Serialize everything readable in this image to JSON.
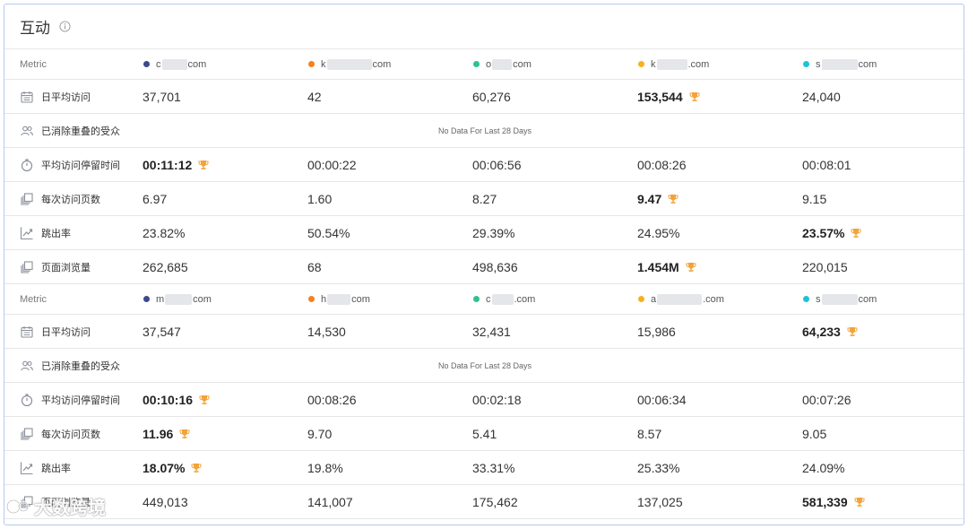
{
  "card": {
    "title": "互动"
  },
  "groups": [
    {
      "header": {
        "metric_label": "Metric",
        "sites": [
          {
            "pre": "c",
            "post": "com",
            "color": "#3b4a8c"
          },
          {
            "pre": "k",
            "post": "com",
            "color": "#f5821f"
          },
          {
            "pre": "o",
            "post": "com",
            "color": "#2fc28f"
          },
          {
            "pre": "k",
            "post": ".com",
            "color": "#f5b21f"
          },
          {
            "pre": "s",
            "post": "com",
            "color": "#1fc2d9"
          }
        ]
      },
      "rows": [
        {
          "icon": "calendar-icon",
          "label": "日平均访问",
          "values": [
            "37,701",
            "42",
            "60,276",
            "153,544",
            "24,040"
          ],
          "best": 3
        },
        {
          "icon": "people-icon",
          "label": "已消除重叠的受众",
          "nodata": "No Data For Last 28 Days"
        },
        {
          "icon": "stopwatch-icon",
          "label": "平均访问停留时间",
          "values": [
            "00:11:12",
            "00:00:22",
            "00:06:56",
            "00:08:26",
            "00:08:01"
          ],
          "best": 0
        },
        {
          "icon": "pages-icon",
          "label": "每次访问页数",
          "values": [
            "6.97",
            "1.60",
            "8.27",
            "9.47",
            "9.15"
          ],
          "best": 3
        },
        {
          "icon": "trend-icon",
          "label": "跳出率",
          "values": [
            "23.82%",
            "50.54%",
            "29.39%",
            "24.95%",
            "23.57%"
          ],
          "best": 4
        },
        {
          "icon": "pages-icon",
          "label": "页面浏览量",
          "values": [
            "262,685",
            "68",
            "498,636",
            "1.454M",
            "220,015"
          ],
          "best": 3
        }
      ]
    },
    {
      "header": {
        "metric_label": "Metric",
        "sites": [
          {
            "pre": "m",
            "post": "com",
            "color": "#3b4a8c"
          },
          {
            "pre": "h",
            "post": "com",
            "color": "#f5821f"
          },
          {
            "pre": "c",
            "post": ".com",
            "color": "#2fc28f"
          },
          {
            "pre": "a",
            "post": ".com",
            "color": "#f5b21f"
          },
          {
            "pre": "s",
            "post": "com",
            "color": "#1fc2d9"
          }
        ]
      },
      "rows": [
        {
          "icon": "calendar-icon",
          "label": "日平均访问",
          "values": [
            "37,547",
            "14,530",
            "32,431",
            "15,986",
            "64,233"
          ],
          "best": 4
        },
        {
          "icon": "people-icon",
          "label": "已消除重叠的受众",
          "nodata": "No Data For Last 28 Days"
        },
        {
          "icon": "stopwatch-icon",
          "label": "平均访问停留时间",
          "values": [
            "00:10:16",
            "00:08:26",
            "00:02:18",
            "00:06:34",
            "00:07:26"
          ],
          "best": 0
        },
        {
          "icon": "pages-icon",
          "label": "每次访问页数",
          "values": [
            "11.96",
            "9.70",
            "5.41",
            "8.57",
            "9.05"
          ],
          "best": 0
        },
        {
          "icon": "trend-icon",
          "label": "跳出率",
          "values": [
            "18.07%",
            "19.8%",
            "33.31%",
            "25.33%",
            "24.09%"
          ],
          "best": 0
        },
        {
          "icon": "pages-icon",
          "label": "页面浏览量",
          "values": [
            "449,013",
            "141,007",
            "175,462",
            "137,025",
            "581,339"
          ],
          "best": 4
        }
      ]
    }
  ],
  "watermark": {
    "text": "大数跨境"
  }
}
